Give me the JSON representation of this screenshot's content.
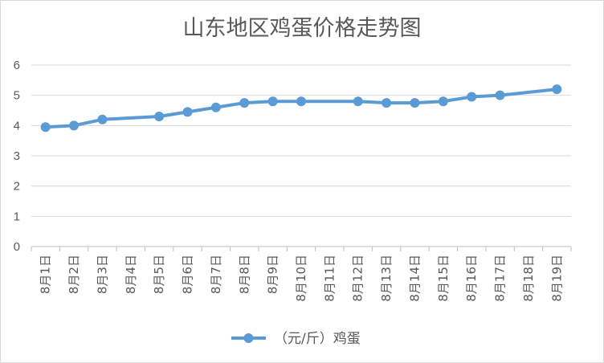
{
  "chart_data": {
    "type": "line",
    "title": "山东地区鸡蛋价格走势图",
    "xlabel": "",
    "ylabel": "",
    "ylim": [
      0,
      6
    ],
    "yticks": [
      0,
      1,
      2,
      3,
      4,
      5,
      6
    ],
    "grid": true,
    "legend_position": "bottom",
    "categories": [
      "8月1日",
      "8月2日",
      "8月3日",
      "8月4日",
      "8月5日",
      "8月6日",
      "8月7日",
      "8月8日",
      "8月9日",
      "8月10日",
      "8月11日",
      "8月12日",
      "8月13日",
      "8月14日",
      "8月15日",
      "8月16日",
      "8月17日",
      "8月18日",
      "8月19日"
    ],
    "series": [
      {
        "name": "（元/斤）鸡蛋",
        "color": "#5b9bd5",
        "values": [
          3.95,
          4.0,
          4.2,
          null,
          4.3,
          4.45,
          4.6,
          4.75,
          4.8,
          4.8,
          null,
          4.8,
          4.75,
          4.75,
          4.8,
          4.95,
          5.0,
          null,
          5.2
        ]
      }
    ]
  }
}
